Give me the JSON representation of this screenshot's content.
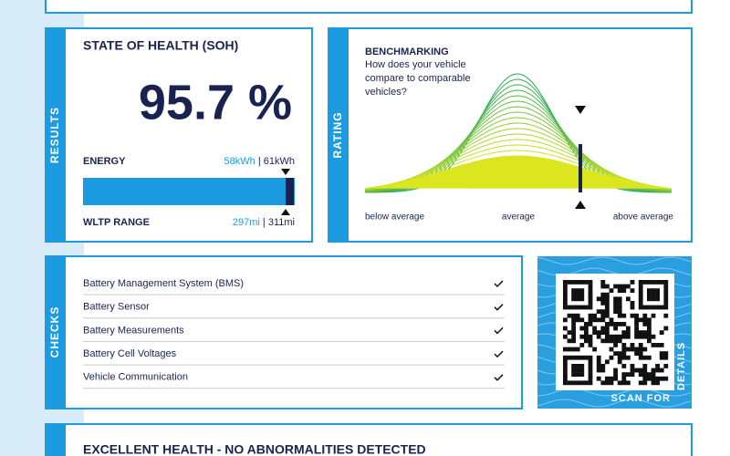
{
  "results": {
    "side_label": "RESULTS",
    "title": "STATE OF HEALTH (SOH)",
    "soh": "95.7 %",
    "energy": {
      "label": "ENERGY",
      "value": "58kWh",
      "separator": "|",
      "total": "61kWh"
    },
    "range": {
      "label": "WLTP RANGE",
      "value": "297mi",
      "separator": "|",
      "total": "311mi"
    }
  },
  "rating": {
    "side_label": "RATING",
    "title": "BENCHMARKING",
    "question": [
      "How does your vehicle",
      "compare to comparable",
      "vehicles?"
    ],
    "axis_labels": [
      "below average",
      "average",
      "above average"
    ]
  },
  "checks": {
    "side_label": "CHECKS",
    "items": [
      "Battery Management System (BMS)",
      "Battery Sensor",
      "Battery Measurements",
      "Battery Cell Voltages",
      "Vehicle Communication"
    ]
  },
  "qr": {
    "label_bottom": "SCAN FOR",
    "label_side": "DETAILS"
  },
  "summary": {
    "title": "EXCELLENT HEALTH - NO ABNORMALITIES DETECTED"
  }
}
